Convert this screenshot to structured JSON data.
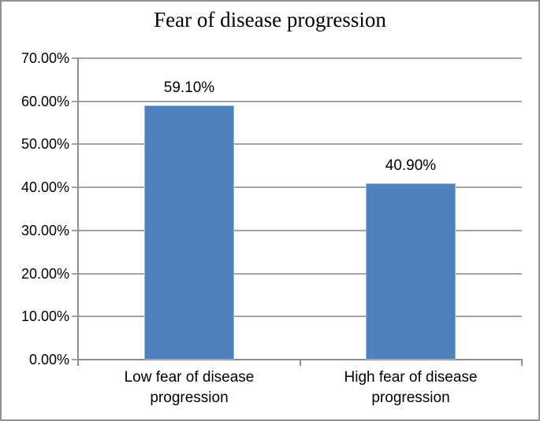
{
  "chart_data": {
    "type": "bar",
    "title": "Fear of disease progression",
    "categories": [
      "Low fear of disease progression",
      "High fear of disease progression"
    ],
    "values": [
      59.1,
      40.9
    ],
    "data_labels": [
      "59.10%",
      "40.90%"
    ],
    "y_tick_labels": [
      "0.00%",
      "10.00%",
      "20.00%",
      "30.00%",
      "40.00%",
      "50.00%",
      "60.00%",
      "70.00%"
    ],
    "ylim": [
      0,
      70
    ],
    "y_tick_step": 10,
    "xlabel": "",
    "ylabel": "",
    "grid": "horizontal",
    "legend": "none",
    "bar_color": "#4f81bd",
    "gridline_color": "#a2a2a2",
    "axis_color": "#8e8e8e",
    "text_color": "#000000"
  }
}
